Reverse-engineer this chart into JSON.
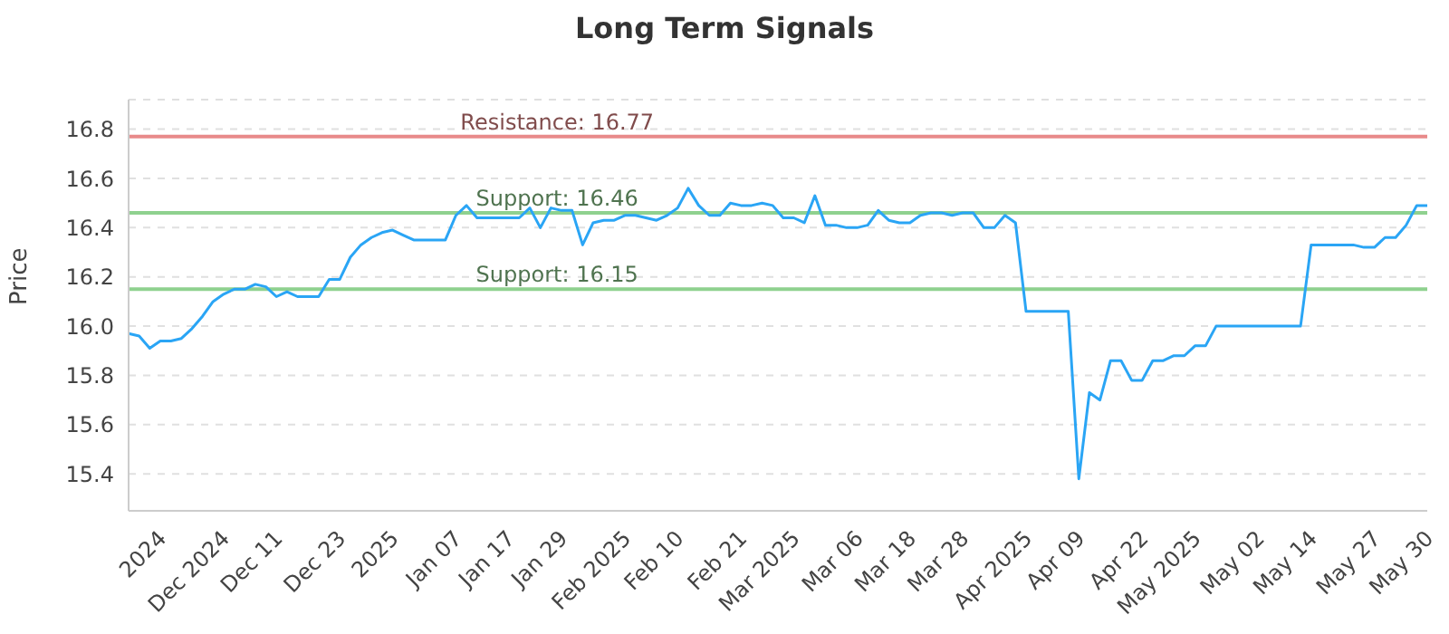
{
  "chart_data": {
    "type": "line",
    "title": "Long Term Signals",
    "ylabel": "Price",
    "categories": [
      null,
      null,
      null,
      "2024",
      null,
      null,
      null,
      null,
      null,
      "Dec 2024",
      null,
      null,
      null,
      null,
      "Dec 11",
      null,
      null,
      null,
      null,
      null,
      "Dec 23",
      null,
      null,
      null,
      null,
      "2025",
      null,
      null,
      null,
      null,
      null,
      "Jan 07",
      null,
      null,
      null,
      null,
      "Jan 17",
      null,
      null,
      null,
      null,
      "Jan 29",
      null,
      null,
      null,
      null,
      null,
      "Feb 2025",
      null,
      null,
      null,
      null,
      "Feb 10",
      null,
      null,
      null,
      null,
      null,
      "Feb 21",
      null,
      null,
      null,
      null,
      "Mar 2025",
      null,
      null,
      null,
      null,
      null,
      "Mar 06",
      null,
      null,
      null,
      null,
      "Mar 18",
      null,
      null,
      null,
      null,
      "Mar 28",
      null,
      null,
      null,
      null,
      null,
      "Apr 2025",
      null,
      null,
      null,
      null,
      "Apr 09",
      null,
      null,
      null,
      null,
      null,
      "Apr 22",
      null,
      null,
      null,
      null,
      "May 2025",
      null,
      null,
      null,
      null,
      null,
      "May 02",
      null,
      null,
      null,
      null,
      "May 14",
      null,
      null,
      null,
      null,
      null,
      "May 27",
      null,
      null,
      null,
      null,
      "May 30"
    ],
    "series": [
      {
        "color": "#2aa5f5",
        "values": [
          15.97,
          15.96,
          15.91,
          15.94,
          15.94,
          15.95,
          15.99,
          16.04,
          16.1,
          16.13,
          16.15,
          16.15,
          16.17,
          16.16,
          16.12,
          16.14,
          16.12,
          16.12,
          16.12,
          16.19,
          16.19,
          16.28,
          16.33,
          16.36,
          16.38,
          16.39,
          16.37,
          16.35,
          16.35,
          16.35,
          16.35,
          16.45,
          16.49,
          16.44,
          16.44,
          16.44,
          16.44,
          16.44,
          16.48,
          16.4,
          16.48,
          16.47,
          16.47,
          16.33,
          16.42,
          16.43,
          16.43,
          16.45,
          16.45,
          16.44,
          16.43,
          16.45,
          16.48,
          16.56,
          16.49,
          16.45,
          16.45,
          16.5,
          16.49,
          16.49,
          16.5,
          16.49,
          16.44,
          16.44,
          16.42,
          16.53,
          16.41,
          16.41,
          16.4,
          16.4,
          16.41,
          16.47,
          16.43,
          16.42,
          16.42,
          16.45,
          16.46,
          16.46,
          16.45,
          16.46,
          16.46,
          16.4,
          16.4,
          16.45,
          16.42,
          16.06,
          16.06,
          16.06,
          16.06,
          16.06,
          15.38,
          15.73,
          15.7,
          15.86,
          15.86,
          15.78,
          15.78,
          15.86,
          15.86,
          15.88,
          15.88,
          15.92,
          15.92,
          16.0,
          16.0,
          16.0,
          16.0,
          16.0,
          16.0,
          16.0,
          16.0,
          16.0,
          16.33,
          16.33,
          16.33,
          16.33,
          16.33,
          16.32,
          16.32,
          16.36,
          16.36,
          16.41,
          16.49,
          16.49
        ]
      }
    ],
    "ylim": [
      15.25,
      16.92
    ],
    "yticks": [
      15.4,
      15.6,
      15.8,
      {
        "value": 16.0,
        "label": "16.0"
      },
      16.2,
      16.4,
      16.6,
      16.8
    ],
    "grid": "y",
    "marker": "none",
    "line_style": "solid",
    "ref_lines": [
      {
        "axis": "y",
        "value": 16.77,
        "label": "Resistance: 16.77",
        "color": "#e88a8a"
      },
      {
        "axis": "y",
        "value": 16.46,
        "label": "Support: 16.46",
        "color": "#8fd18f"
      },
      {
        "axis": "y",
        "value": 16.15,
        "label": "Support: 16.15",
        "color": "#8fd18f"
      }
    ]
  }
}
